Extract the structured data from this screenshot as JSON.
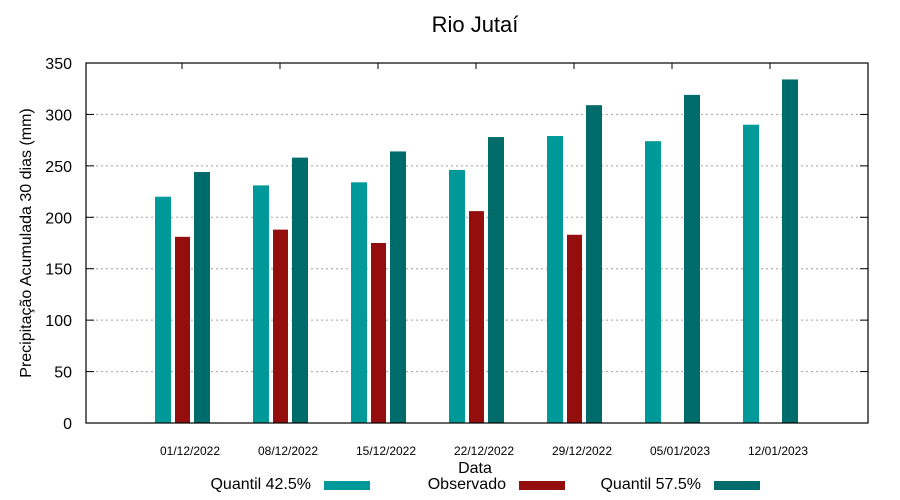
{
  "chart_data": {
    "type": "bar",
    "title": "Rio Jutaí",
    "xlabel": "Data",
    "ylabel": "Precipitação Acumulada 30 dias (mm)",
    "ylim": [
      0,
      350
    ],
    "yticks": [
      0,
      50,
      100,
      150,
      200,
      250,
      300,
      350
    ],
    "grid": true,
    "legend_placement": "bottom",
    "categories": [
      "01/12/2022",
      "08/12/2022",
      "15/12/2022",
      "22/12/2022",
      "29/12/2022",
      "05/01/2023",
      "12/01/2023"
    ],
    "series": [
      {
        "name": "Quantil 42.5%",
        "color": "#009999",
        "values": [
          220,
          231,
          234,
          246,
          279,
          274,
          290
        ]
      },
      {
        "name": "Observado",
        "color": "#950e0e",
        "values": [
          181,
          188,
          175,
          206,
          183,
          null,
          null
        ]
      },
      {
        "name": "Quantil 57.5%",
        "color": "#006b6b",
        "values": [
          244,
          258,
          264,
          278,
          309,
          319,
          334
        ]
      }
    ]
  }
}
